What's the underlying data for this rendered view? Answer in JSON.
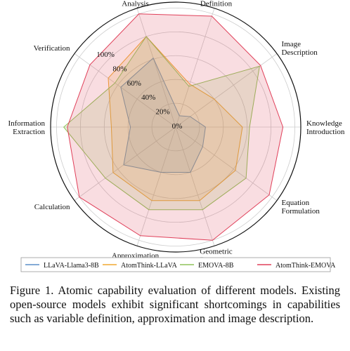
{
  "chart_data": {
    "type": "radar",
    "categories": [
      "Graphs\nAnalysis",
      "Variable\nDefinition",
      "Image\nDescription",
      "Knowledge\nIntroduction",
      "Equation\nFormulation",
      "Geometric\nReasoning",
      "Approximation",
      "Calculation",
      "Information\nExtraction",
      "Verification"
    ],
    "series": [
      {
        "name": "LLaVA-Llama3-8B",
        "color": "#5b8fc9",
        "values": [
          61,
          10,
          15,
          25,
          28,
          40,
          40,
          54,
          38,
          57
        ]
      },
      {
        "name": "AtomThink-LLaVA",
        "color": "#f0a830",
        "values": [
          80,
          38,
          40,
          56,
          62,
          65,
          65,
          65,
          54,
          70
        ]
      },
      {
        "name": "EMOVA-8B",
        "color": "#8fc45a",
        "values": [
          80,
          36,
          87,
          62,
          73,
          73,
          73,
          73,
          94,
          63
        ]
      },
      {
        "name": "AtomThink-EMOVA",
        "color": "#e0405a",
        "values": [
          100,
          98,
          88,
          90,
          97,
          100,
          96,
          100,
          91,
          89
        ]
      }
    ],
    "ylim": [
      0,
      105
    ],
    "yticks": [
      {
        "value": 0,
        "label": "0%"
      },
      {
        "value": 20,
        "label": "20%"
      },
      {
        "value": 40,
        "label": "40%"
      },
      {
        "value": 60,
        "label": "60%"
      },
      {
        "value": 80,
        "label": "80%"
      },
      {
        "value": 100,
        "label": "100%"
      }
    ],
    "grid": true,
    "legend": "bottom",
    "caption": "Figure 1. Atomic capability evaluation of different models. Existing open-source models exhibit significant shortcomings in capabilities such as variable definition, approximation and image description."
  }
}
